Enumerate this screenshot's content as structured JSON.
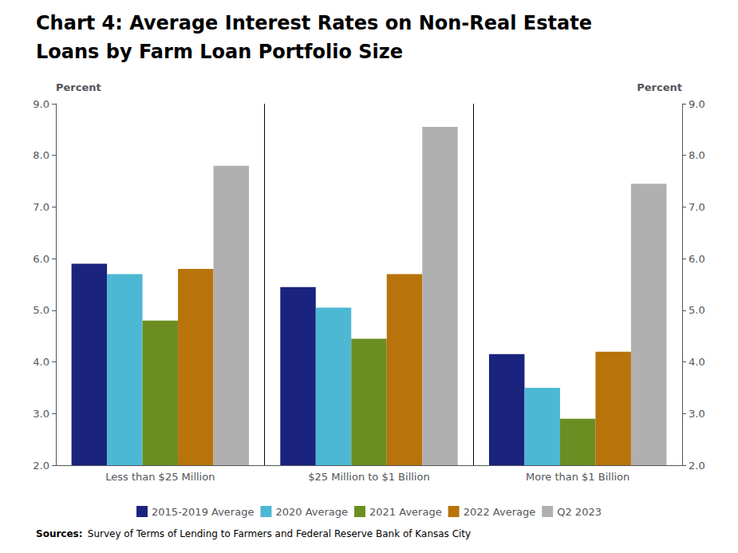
{
  "chart_data": {
    "type": "bar",
    "title": "Chart 4: Average Interest Rates on Non-Real Estate",
    "subtitle": "Loans by Farm Loan Portfolio Size",
    "categories": [
      "Less than $25 Million",
      "$25 Million to $1 Billion",
      "More than $1 Billion"
    ],
    "series": [
      {
        "name": "2015-2019 Average",
        "color": "#1a237e",
        "values": [
          5.9,
          5.45,
          4.15
        ]
      },
      {
        "name": "2020 Average",
        "color": "#4db8d4",
        "values": [
          5.7,
          5.05,
          3.5
        ]
      },
      {
        "name": "2021 Average",
        "color": "#6b8e23",
        "values": [
          4.8,
          4.45,
          2.9
        ]
      },
      {
        "name": "2022 Average",
        "color": "#b8730a",
        "values": [
          5.8,
          5.7,
          4.2
        ]
      },
      {
        "name": "Q2 2023",
        "color": "#b0b0b0",
        "values": [
          7.8,
          8.55,
          7.45
        ]
      }
    ],
    "ylabel": "Percent",
    "y2label": "Percent",
    "ylim": [
      2.0,
      9.0
    ],
    "yticks": [
      {
        "value": 2,
        "label": "2.0"
      },
      {
        "value": 3,
        "label": "3.0"
      },
      {
        "value": 4,
        "label": "4.0"
      },
      {
        "value": 5,
        "label": "5.0"
      },
      {
        "value": 6,
        "label": "6.0"
      },
      {
        "value": 7,
        "label": "7.0"
      },
      {
        "value": 8,
        "label": "8.0"
      },
      {
        "value": 9,
        "label": "9.0"
      }
    ],
    "y2lim": [
      2.0,
      9.0
    ],
    "y2ticks": [
      {
        "value": 2,
        "label": "2.0"
      },
      {
        "value": 3,
        "label": "3.0"
      },
      {
        "value": 4,
        "label": "4.0"
      },
      {
        "value": 5,
        "label": "5.0"
      },
      {
        "value": 6,
        "label": "6.0"
      },
      {
        "value": 7,
        "label": "7.0"
      },
      {
        "value": 8,
        "label": "8.0"
      },
      {
        "value": 9,
        "label": "9.0"
      }
    ],
    "annotations": [
      "Sources:",
      "Survey of Terms of Lending to Farmers and Federal Reserve Bank of Kansas City"
    ],
    "grid": false,
    "legend": "bottom"
  }
}
